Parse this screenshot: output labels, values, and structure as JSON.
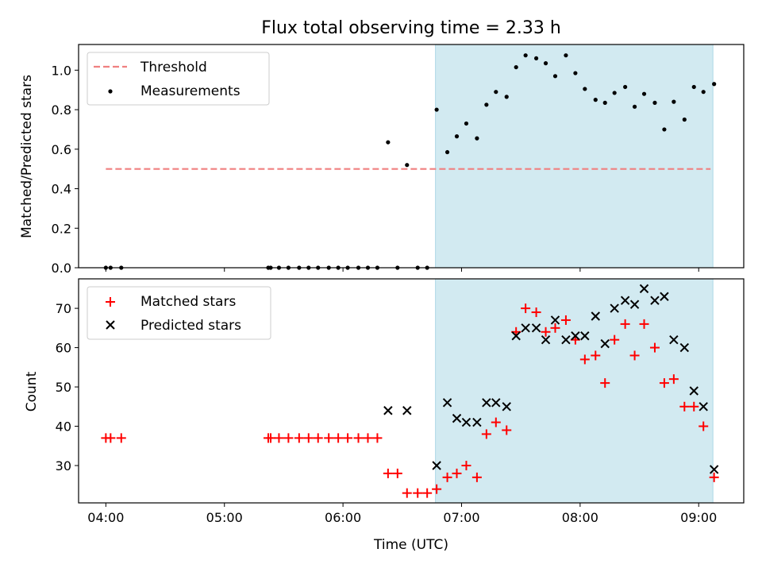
{
  "chart_data": [
    {
      "type": "scatter",
      "title": "Flux total observing time = 2.33 h",
      "xlabel": "",
      "ylabel": "Matched/Predicted stars",
      "xlim": [
        3.77,
        9.38
      ],
      "ylim": [
        0.0,
        1.13
      ],
      "yticks": [
        0.0,
        0.2,
        0.4,
        0.6,
        0.8,
        1.0
      ],
      "ytick_labels": [
        "0.0",
        "0.2",
        "0.4",
        "0.6",
        "0.8",
        "1.0"
      ],
      "shaded_region": [
        6.78,
        9.12
      ],
      "shade_color": "#add8e6",
      "threshold": {
        "name": "Threshold",
        "value": 0.5,
        "x_range": [
          4.0,
          9.1
        ],
        "color": "#f08080"
      },
      "series": [
        {
          "name": "Measurements",
          "color": "#000000",
          "x": [
            4.0,
            4.04,
            4.13,
            5.37,
            5.39,
            5.46,
            5.54,
            5.63,
            5.71,
            5.79,
            5.88,
            5.96,
            6.04,
            6.13,
            6.21,
            6.29,
            6.38,
            6.46,
            6.54,
            6.63,
            6.71,
            6.79,
            6.88,
            6.96,
            7.04,
            7.13,
            7.21,
            7.29,
            7.38,
            7.46,
            7.54,
            7.63,
            7.71,
            7.79,
            7.88,
            7.96,
            8.04,
            8.13,
            8.21,
            8.29,
            8.38,
            8.46,
            8.54,
            8.63,
            8.71,
            8.79,
            8.88,
            8.96,
            9.04,
            9.13
          ],
          "values": [
            0,
            0,
            0,
            0,
            0,
            0,
            0,
            0,
            0,
            0,
            0,
            0,
            0,
            0,
            0,
            0,
            0.635,
            0,
            0.52,
            0,
            0,
            0.8,
            0.585,
            0.665,
            0.73,
            0.655,
            0.825,
            0.89,
            0.865,
            1.015,
            1.075,
            1.06,
            1.035,
            0.97,
            1.075,
            0.985,
            0.905,
            0.85,
            0.835,
            0.885,
            0.915,
            0.815,
            0.88,
            0.835,
            0.7,
            0.84,
            0.75,
            0.915,
            0.89,
            0.93
          ]
        }
      ]
    },
    {
      "type": "scatter",
      "title": "",
      "xlabel": "Time (UTC)",
      "ylabel": "Count",
      "xlim": [
        3.77,
        9.38
      ],
      "ylim": [
        20.5,
        77.5
      ],
      "yticks": [
        30,
        40,
        50,
        60,
        70
      ],
      "ytick_labels": [
        "30",
        "40",
        "50",
        "60",
        "70"
      ],
      "xticks": [
        4,
        5,
        6,
        7,
        8,
        9
      ],
      "xtick_labels": [
        "04:00",
        "05:00",
        "06:00",
        "07:00",
        "08:00",
        "09:00"
      ],
      "shaded_region": [
        6.78,
        9.12
      ],
      "shade_color": "#add8e6",
      "series": [
        {
          "name": "Matched stars",
          "color": "#ff0000",
          "marker": "plus",
          "x": [
            4.0,
            4.04,
            4.13,
            5.37,
            5.39,
            5.46,
            5.54,
            5.63,
            5.71,
            5.79,
            5.88,
            5.96,
            6.04,
            6.13,
            6.21,
            6.29,
            6.38,
            6.46,
            6.54,
            6.63,
            6.71,
            6.79,
            6.88,
            6.96,
            7.04,
            7.13,
            7.21,
            7.29,
            7.38,
            7.46,
            7.54,
            7.63,
            7.71,
            7.79,
            7.88,
            7.96,
            8.04,
            8.13,
            8.21,
            8.29,
            8.38,
            8.46,
            8.54,
            8.63,
            8.71,
            8.79,
            8.88,
            8.96,
            9.04,
            9.13
          ],
          "values": [
            37,
            37,
            37,
            37,
            37,
            37,
            37,
            37,
            37,
            37,
            37,
            37,
            37,
            37,
            37,
            37,
            28,
            28,
            23,
            23,
            23,
            24,
            27,
            28,
            30,
            27,
            38,
            41,
            39,
            64,
            70,
            69,
            64,
            65,
            67,
            62,
            57,
            58,
            51,
            62,
            66,
            58,
            66,
            60,
            51,
            52,
            45,
            45,
            40,
            27
          ]
        },
        {
          "name": "Predicted stars",
          "color": "#000000",
          "marker": "x",
          "x": [
            6.38,
            6.54,
            6.79,
            6.88,
            6.96,
            7.04,
            7.13,
            7.21,
            7.29,
            7.38,
            7.46,
            7.54,
            7.63,
            7.71,
            7.79,
            7.88,
            7.96,
            8.04,
            8.13,
            8.21,
            8.29,
            8.38,
            8.46,
            8.54,
            8.63,
            8.71,
            8.79,
            8.88,
            8.96,
            9.04,
            9.13
          ],
          "values": [
            44,
            44,
            30,
            46,
            42,
            41,
            41,
            46,
            46,
            45,
            63,
            65,
            65,
            62,
            67,
            62,
            63,
            63,
            68,
            61,
            70,
            72,
            71,
            75,
            72,
            73,
            62,
            60,
            49,
            45,
            29
          ]
        }
      ]
    }
  ]
}
